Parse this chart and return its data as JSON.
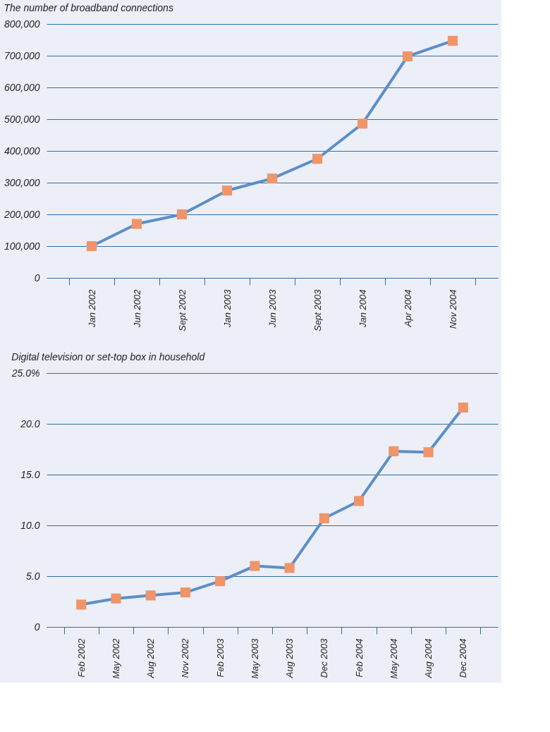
{
  "chart_data": [
    {
      "type": "line",
      "title": "The number of broadband connections",
      "categories": [
        "Jan 2002",
        "Jun 2002",
        "Sept 2002",
        "Jan 2003",
        "Jun 2003",
        "Sept 2003",
        "Jan 2004",
        "Apr 2004",
        "Nov 2004"
      ],
      "series": [
        {
          "color": "#5b8fc7",
          "values": [
            100000,
            170000,
            200000,
            275000,
            313000,
            375000,
            486000,
            698000,
            747000
          ]
        }
      ],
      "ylim": [
        0,
        800000
      ],
      "yticks": [
        {
          "value": 0,
          "label": "0"
        },
        {
          "value": 100000,
          "label": "100,000"
        },
        {
          "value": 200000,
          "label": "200,000"
        },
        {
          "value": 300000,
          "label": "300,000"
        },
        {
          "value": 400000,
          "label": "400,000"
        },
        {
          "value": 500000,
          "label": "500,000"
        },
        {
          "value": 600000,
          "label": "600,000"
        },
        {
          "value": 700000,
          "label": "700,000"
        },
        {
          "value": 800000,
          "label": "800,000"
        }
      ],
      "grid": "y",
      "marker": "square",
      "line_style": "solid"
    },
    {
      "type": "line",
      "title": "Digital television or set-top box in household",
      "categories": [
        "Feb 2002",
        "May 2002",
        "Aug 2002",
        "Nov 2002",
        "Feb 2003",
        "May 2003",
        "Aug 2003",
        "Dec 2003",
        "Feb 2004",
        "May 2004",
        "Aug 2004",
        "Dec 2004"
      ],
      "series": [
        {
          "color": "#5b8fc7",
          "values": [
            2.2,
            2.8,
            3.1,
            3.4,
            4.5,
            6.0,
            5.8,
            10.7,
            12.4,
            17.3,
            17.2,
            21.6
          ]
        }
      ],
      "ylim": [
        0,
        25
      ],
      "yticks": [
        {
          "value": 0,
          "label": "0"
        },
        {
          "value": 5,
          "label": "5.0"
        },
        {
          "value": 10,
          "label": "10.0"
        },
        {
          "value": 15,
          "label": "15.0"
        },
        {
          "value": 20,
          "label": "20.0"
        },
        {
          "value": 25,
          "label": "25.0%"
        }
      ],
      "grid": "y",
      "marker": "square",
      "line_style": "solid"
    }
  ]
}
